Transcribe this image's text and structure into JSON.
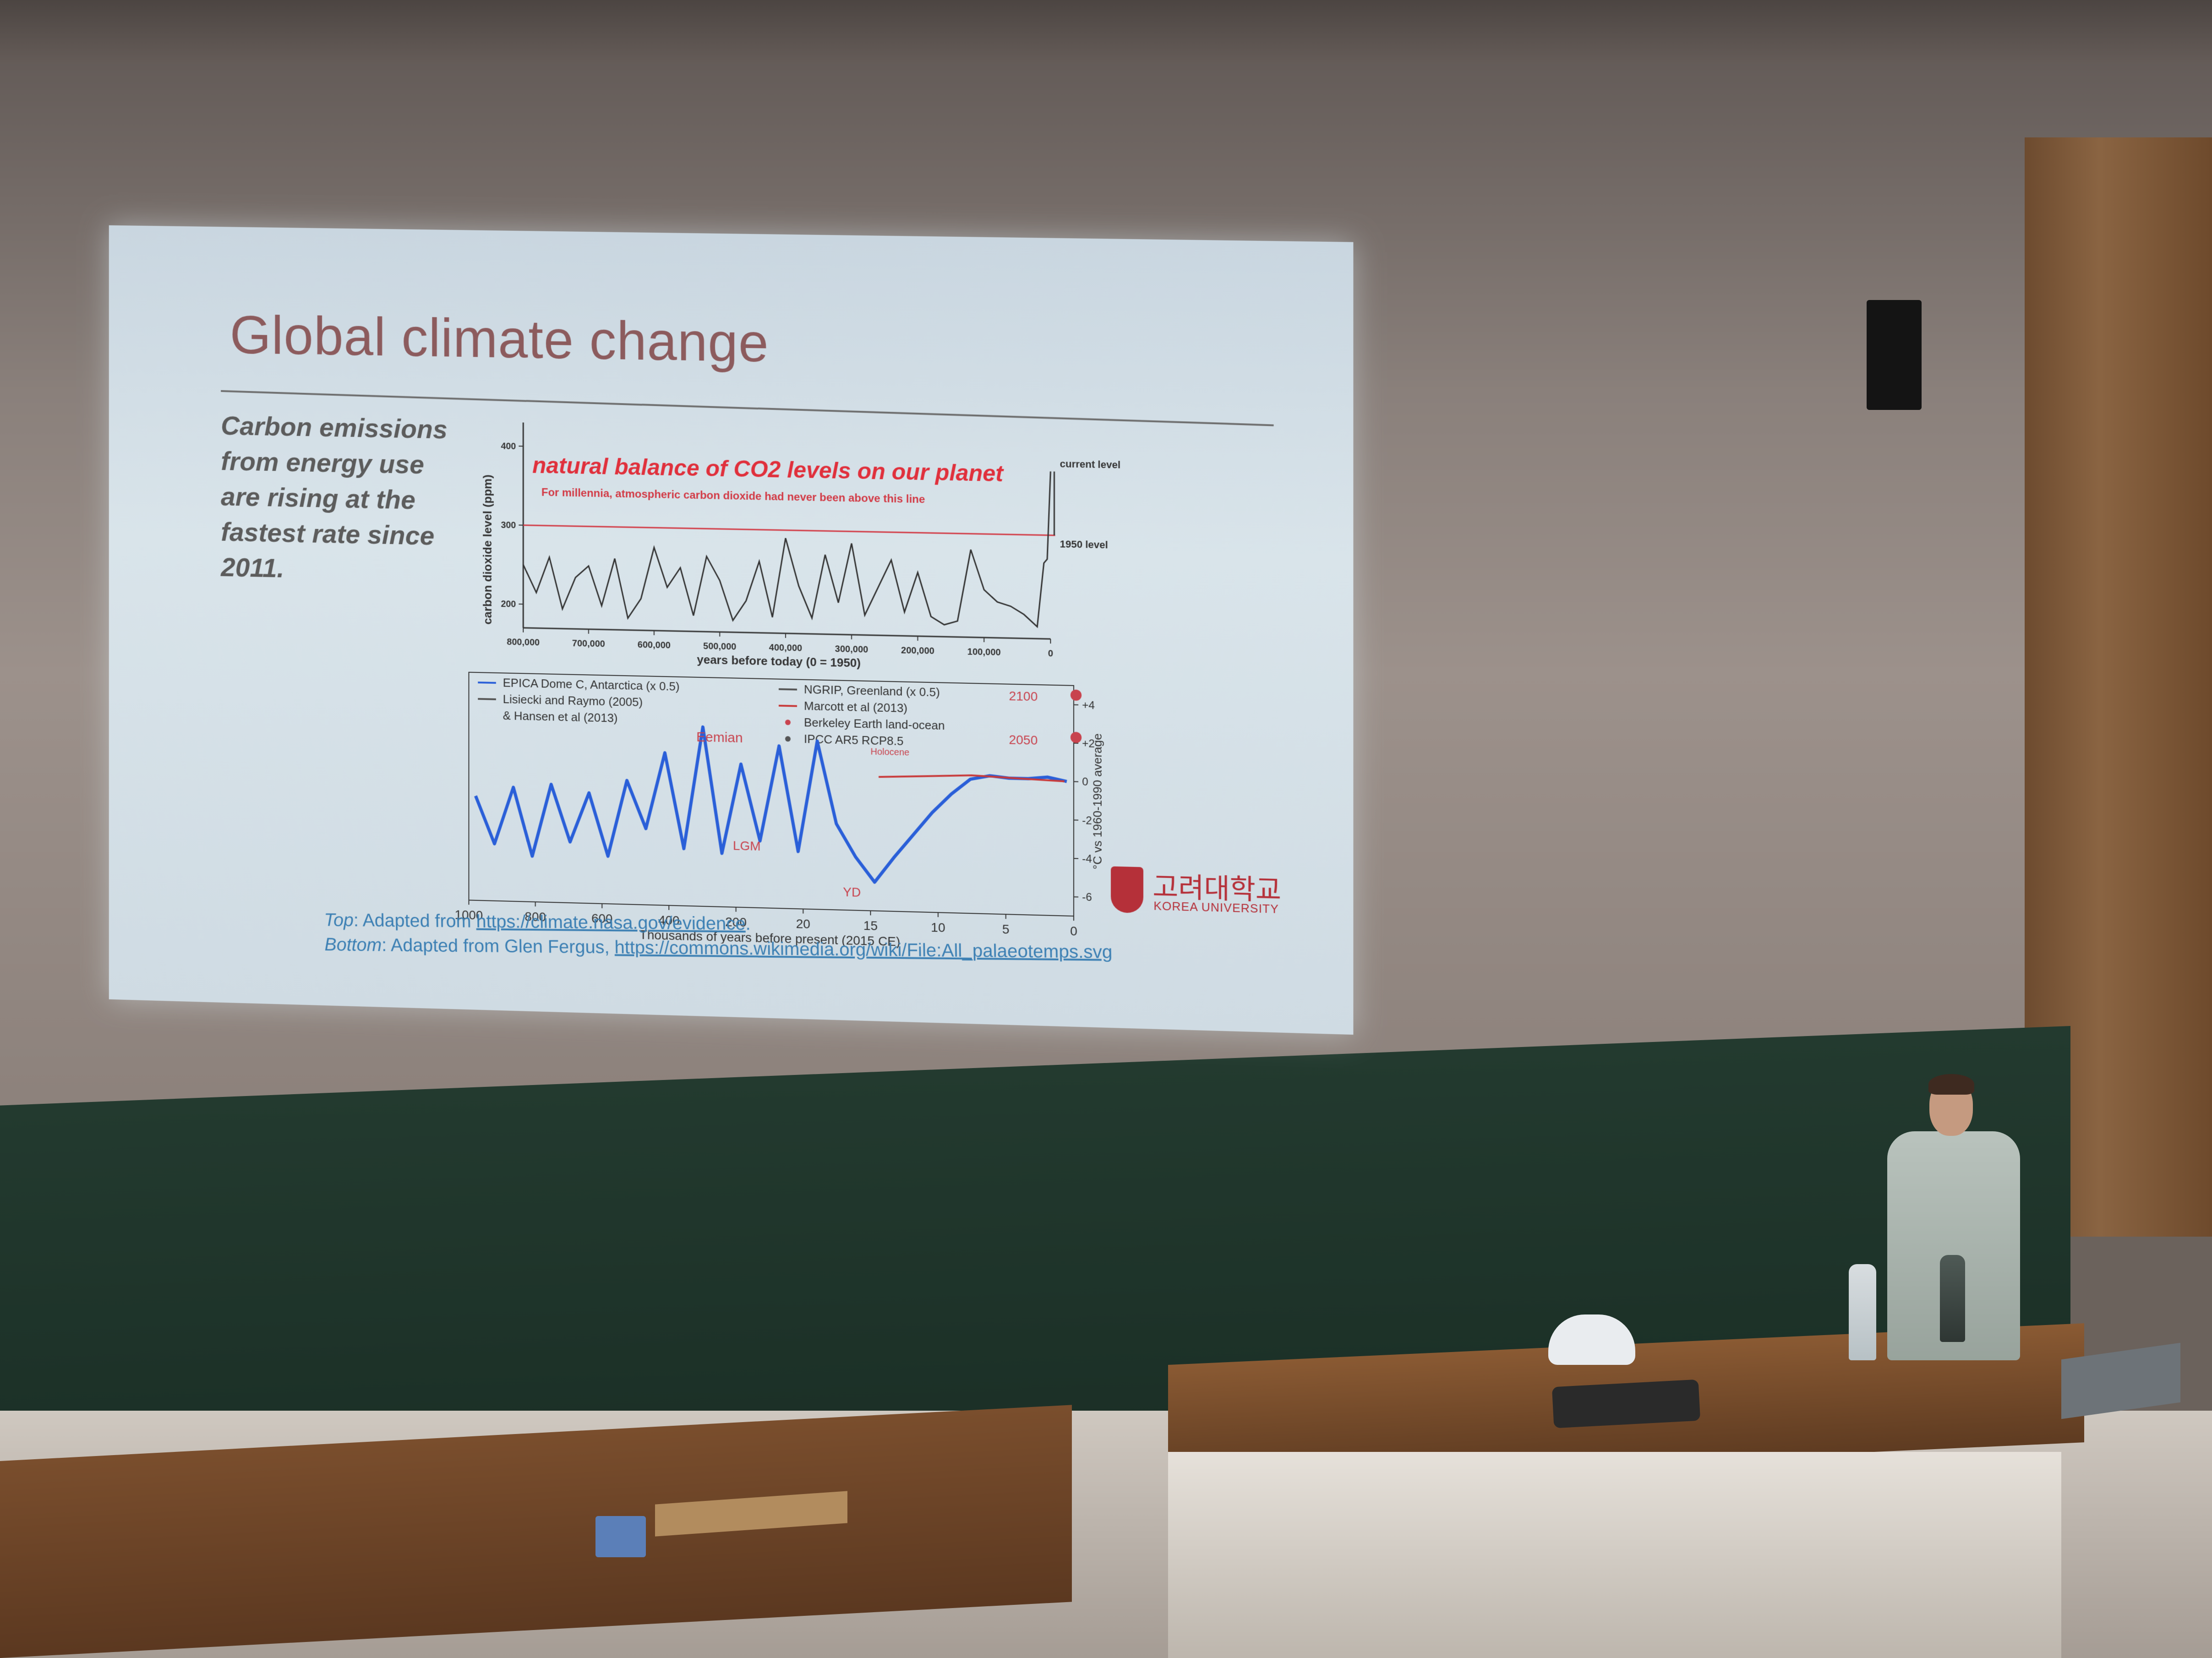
{
  "slide": {
    "title": "Global climate change",
    "side_text": [
      "Carbon emissions",
      "from energy use",
      "are rising at the",
      "fastest rate since",
      "2011."
    ],
    "credits": {
      "top_label": "Top",
      "top_text": ": Adapted from ",
      "top_link": "https://climate.nasa.gov/evidence",
      "top_end": ".",
      "bottom_label": "Bottom",
      "bottom_text": ": Adapted from Glen Fergus, ",
      "bottom_link": "https://commons.wikimedia.org/wiki/File:All_palaeotemps.svg"
    },
    "logo": {
      "korean": "고려대학교",
      "english": "KOREA UNIVERSITY",
      "color": "#b53039"
    }
  },
  "chart_data": [
    {
      "type": "line",
      "title": "natural balance of CO2 levels on our planet",
      "subtitle": "For millennia, atmospheric carbon dioxide had never been above this line",
      "ylabel": "carbon dioxide level (ppm)",
      "xlabel": "years before today (0 = 1950)",
      "x_ticks": [
        "800,000",
        "700,000",
        "600,000",
        "500,000",
        "400,000",
        "300,000",
        "200,000",
        "100,000",
        "0"
      ],
      "y_ticks": [
        "200",
        "300",
        "400"
      ],
      "ylim": [
        170,
        430
      ],
      "xlim": [
        800000,
        0
      ],
      "annotations": {
        "current": "current level",
        "level_1950": "1950 level"
      },
      "series": [
        {
          "x": [
            800000,
            780000,
            760000,
            740000,
            720000,
            700000,
            680000,
            660000,
            640000,
            620000,
            600000,
            580000,
            560000,
            540000,
            520000,
            500000,
            480000,
            460000,
            440000,
            420000,
            400000,
            380000,
            360000,
            340000,
            320000,
            300000,
            280000,
            260000,
            240000,
            220000,
            200000,
            180000,
            160000,
            140000,
            120000,
            100000,
            80000,
            60000,
            40000,
            20000,
            10000,
            5000,
            0
          ],
          "values": [
            250,
            215,
            260,
            195,
            235,
            250,
            200,
            260,
            185,
            210,
            275,
            225,
            250,
            190,
            265,
            235,
            185,
            210,
            260,
            190,
            290,
            230,
            190,
            270,
            210,
            285,
            195,
            230,
            265,
            200,
            250,
            195,
            185,
            190,
            280,
            230,
            215,
            210,
            200,
            185,
            265,
            270,
            380
          ]
        }
      ],
      "reference_lines": [
        {
          "label": "1950 level",
          "y": 300
        }
      ]
    },
    {
      "type": "line",
      "xlabel": "Thousands of years before present (2015 CE)",
      "ylabel": "°C vs 1960-1990 average",
      "x_ticks": [
        "1000",
        "800",
        "600",
        "400",
        "200",
        "20",
        "15",
        "10",
        "5",
        "0"
      ],
      "y_ticks": [
        "+4",
        "+2",
        "0",
        "-2",
        "-4",
        "-6"
      ],
      "ylim": [
        -7,
        5
      ],
      "legend": [
        "EPICA Dome C, Antarctica (x 0.5)",
        "Lisiecki and Raymo (2005)",
        "& Hansen et al (2013)",
        "NGRIP, Greenland (x 0.5)",
        "Marcott et al (2013)",
        "Berkeley Earth land-ocean",
        "IPCC AR5 RCP8.5"
      ],
      "annotations": [
        "Eemian",
        "LGM",
        "YD",
        "Holocene",
        "2100",
        "2050"
      ],
      "colors": {
        "epica": "#2a5fd8",
        "lisiecki": "#555555",
        "ngrip": "#4aa7c4",
        "marcott": "#c83a3a",
        "markers": "#c8434e"
      },
      "series": [
        {
          "name": "EPICA Dome C, Antarctica (x 0.5)",
          "values": [
            -1.5,
            -4.0,
            -1.0,
            -4.6,
            -0.8,
            -3.8,
            -1.2,
            -4.5,
            -0.5,
            -3.0,
            1.0,
            -4.0,
            2.4,
            -4.2,
            0.5,
            -3.5,
            1.5,
            -4.0,
            1.8,
            -2.5,
            -4.2,
            -5.5,
            -4.2,
            -3.0,
            -1.8,
            -0.8,
            0.0,
            0.2,
            0.1,
            0.1,
            0.2,
            0.0
          ]
        },
        {
          "name": "Marcott et al (2013)",
          "values": [
            0.0,
            0.1,
            0.2,
            0.1,
            0.0
          ]
        }
      ],
      "markers": [
        {
          "label": "2100",
          "value": 4.5
        },
        {
          "label": "2050",
          "value": 2.3
        }
      ]
    }
  ]
}
